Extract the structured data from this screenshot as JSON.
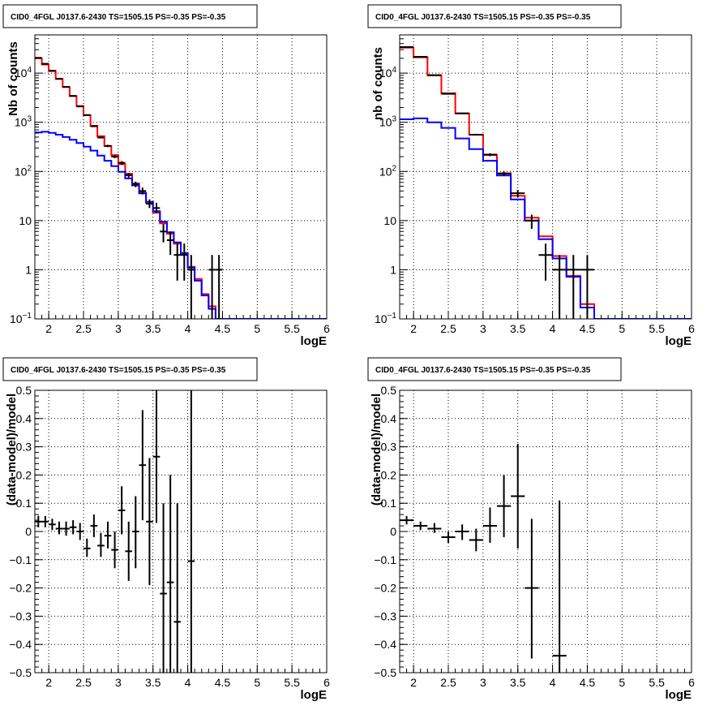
{
  "chart_data": [
    {
      "type": "step",
      "panel": "top-left",
      "title": "CID0_4FGL J0137.6-2430 TS=1505.15 PS=-0.35 PS=-0.35",
      "xlabel": "logE",
      "ylabel": "Nb of counts",
      "xlim": [
        1.8,
        6.0
      ],
      "ylim": [
        0.1,
        60000
      ],
      "yscale": "log",
      "grid": true,
      "x_ticks": [
        "2",
        "2.5",
        "3",
        "3.5",
        "4",
        "4.5",
        "5",
        "5.5",
        "6"
      ],
      "y_ticks": [
        {
          "v": 0.1,
          "base": "10",
          "exp": "−1"
        },
        {
          "v": 1,
          "text": "1"
        },
        {
          "v": 10,
          "text": "10"
        },
        {
          "v": 100,
          "base": "10",
          "exp": "2"
        },
        {
          "v": 1000,
          "base": "10",
          "exp": "3"
        },
        {
          "v": 10000,
          "base": "10",
          "exp": "4"
        }
      ],
      "bin_edges": [
        1.8,
        1.9,
        2.0,
        2.1,
        2.2,
        2.3,
        2.4,
        2.5,
        2.6,
        2.7,
        2.8,
        2.9,
        3.0,
        3.1,
        3.2,
        3.3,
        3.4,
        3.5,
        3.6,
        3.7,
        3.8,
        3.9,
        4.0,
        4.1,
        4.2,
        4.3,
        4.4,
        4.5,
        4.6,
        4.7,
        4.8,
        4.9,
        5.0,
        5.1,
        5.2,
        5.3,
        5.4,
        5.5,
        5.6,
        5.7,
        5.8,
        5.9,
        6.0
      ],
      "series": [
        {
          "name": "",
          "color": "#ff0000",
          "kind": "step",
          "values": [
            20000,
            15000,
            11000,
            7600,
            5200,
            3400,
            2150,
            1400,
            850,
            520,
            330,
            215,
            140,
            90,
            57,
            37,
            23,
            14.5,
            8.8,
            5.4,
            3.4,
            2.1,
            1.15,
            0.65,
            0.32,
            0.18,
            0.1,
            0.1,
            0.1,
            0.1,
            0.1,
            0.1,
            0.1,
            0.1,
            0.1,
            0.1,
            0.1,
            0.1,
            0.1,
            0.1,
            0.1,
            0.1
          ]
        },
        {
          "name": "",
          "color": "#0000ff",
          "kind": "step",
          "values": [
            620,
            640,
            610,
            560,
            500,
            440,
            380,
            320,
            265,
            210,
            165,
            128,
            98,
            72,
            52,
            36,
            24,
            15.5,
            9.5,
            5.8,
            3.6,
            2.2,
            1.1,
            0.6,
            0.3,
            0.16,
            0.1,
            0.1,
            0.1,
            0.1,
            0.1,
            0.1,
            0.1,
            0.1,
            0.1,
            0.1,
            0.1,
            0.1,
            0.1,
            0.1,
            0.1,
            0.1
          ]
        },
        {
          "name": "",
          "color": "#000000",
          "kind": "errorbars",
          "points": [
            {
              "x": 1.85,
              "y": 20500,
              "lo": 20370,
              "hi": 20630
            },
            {
              "x": 1.95,
              "y": 15500,
              "lo": 15380,
              "hi": 15620
            },
            {
              "x": 2.05,
              "y": 11200,
              "lo": 11100,
              "hi": 11300
            },
            {
              "x": 2.15,
              "y": 7700,
              "lo": 7610,
              "hi": 7790
            },
            {
              "x": 2.25,
              "y": 5250,
              "lo": 5180,
              "hi": 5320
            },
            {
              "x": 2.35,
              "y": 3450,
              "lo": 3390,
              "hi": 3510
            },
            {
              "x": 2.45,
              "y": 2100,
              "lo": 2050,
              "hi": 2150
            },
            {
              "x": 2.55,
              "y": 1400,
              "lo": 1360,
              "hi": 1440
            },
            {
              "x": 2.65,
              "y": 830,
              "lo": 800,
              "hi": 860
            },
            {
              "x": 2.75,
              "y": 490,
              "lo": 468,
              "hi": 512
            },
            {
              "x": 2.85,
              "y": 330,
              "lo": 312,
              "hi": 348
            },
            {
              "x": 2.95,
              "y": 200,
              "lo": 186,
              "hi": 214
            },
            {
              "x": 3.05,
              "y": 150,
              "lo": 138,
              "hi": 162
            },
            {
              "x": 3.15,
              "y": 84,
              "lo": 75,
              "hi": 93
            },
            {
              "x": 3.25,
              "y": 55,
              "lo": 48,
              "hi": 62
            },
            {
              "x": 3.35,
              "y": 40,
              "lo": 34,
              "hi": 47
            },
            {
              "x": 3.45,
              "y": 22,
              "lo": 18,
              "hi": 27
            },
            {
              "x": 3.55,
              "y": 18,
              "lo": 14,
              "hi": 23
            },
            {
              "x": 3.65,
              "y": 6,
              "lo": 3.6,
              "hi": 8.5
            },
            {
              "x": 3.75,
              "y": 4,
              "lo": 2.0,
              "hi": 6.0
            },
            {
              "x": 3.85,
              "y": 2,
              "lo": 0.6,
              "hi": 3.4
            },
            {
              "x": 3.95,
              "y": 2,
              "lo": 0.6,
              "hi": 3.4
            },
            {
              "x": 4.05,
              "y": 1,
              "lo": 0.1,
              "hi": 2.0
            },
            {
              "x": 4.35,
              "y": 1,
              "lo": 0.1,
              "hi": 2.0
            },
            {
              "x": 4.45,
              "y": 1,
              "lo": 0.1,
              "hi": 2.0
            }
          ]
        }
      ]
    },
    {
      "type": "step",
      "panel": "top-right",
      "title": "CID0_4FGL J0137.6-2430 TS=1505.15 PS=-0.35 PS=-0.35",
      "xlabel": "logE",
      "ylabel": "nb of counts",
      "xlim": [
        1.8,
        6.0
      ],
      "ylim": [
        0.1,
        60000
      ],
      "yscale": "log",
      "grid": true,
      "x_ticks": [
        "2",
        "2.5",
        "3",
        "3.5",
        "4",
        "4.5",
        "5",
        "5.5",
        "6"
      ],
      "y_ticks": [
        {
          "v": 0.1,
          "base": "10",
          "exp": "−1"
        },
        {
          "v": 1,
          "text": "1"
        },
        {
          "v": 10,
          "text": "10"
        },
        {
          "v": 100,
          "base": "10",
          "exp": "2"
        },
        {
          "v": 1000,
          "base": "10",
          "exp": "3"
        },
        {
          "v": 10000,
          "base": "10",
          "exp": "4"
        }
      ],
      "bin_edges": [
        1.8,
        2.0,
        2.2,
        2.4,
        2.6,
        2.8,
        3.0,
        3.2,
        3.4,
        3.6,
        3.8,
        4.0,
        4.2,
        4.4,
        4.6,
        4.8,
        5.0,
        5.2,
        5.4,
        5.6,
        5.8,
        6.0
      ],
      "series": [
        {
          "name": "",
          "color": "#ff0000",
          "kind": "step",
          "values": [
            33000,
            21000,
            9000,
            3900,
            1520,
            560,
            215,
            92,
            32,
            11.5,
            4.8,
            1.9,
            0.75,
            0.2,
            0.1,
            0.1,
            0.1,
            0.1,
            0.1,
            0.1,
            0.1
          ]
        },
        {
          "name": "",
          "color": "#0000ff",
          "kind": "step",
          "values": [
            1150,
            1200,
            1000,
            770,
            470,
            285,
            165,
            83,
            27,
            10,
            4.2,
            1.7,
            0.72,
            0.17,
            0.1,
            0.1,
            0.1,
            0.1,
            0.1,
            0.1,
            0.1
          ]
        },
        {
          "name": "",
          "color": "#000000",
          "kind": "errorbars",
          "points": [
            {
              "x": 1.9,
              "y": 34000,
              "lo": 33800,
              "hi": 34200
            },
            {
              "x": 2.1,
              "y": 21500,
              "lo": 21350,
              "hi": 21650
            },
            {
              "x": 2.3,
              "y": 9100,
              "lo": 9000,
              "hi": 9200
            },
            {
              "x": 2.5,
              "y": 3800,
              "lo": 3740,
              "hi": 3860
            },
            {
              "x": 2.7,
              "y": 1520,
              "lo": 1480,
              "hi": 1560
            },
            {
              "x": 2.9,
              "y": 560,
              "lo": 536,
              "hi": 584
            },
            {
              "x": 3.1,
              "y": 220,
              "lo": 205,
              "hi": 235
            },
            {
              "x": 3.3,
              "y": 90,
              "lo": 81,
              "hi": 99
            },
            {
              "x": 3.5,
              "y": 36,
              "lo": 30,
              "hi": 42
            },
            {
              "x": 3.7,
              "y": 10,
              "lo": 6.8,
              "hi": 13.2
            },
            {
              "x": 3.9,
              "y": 2,
              "lo": 0.6,
              "hi": 3.4
            },
            {
              "x": 4.1,
              "y": 1,
              "lo": 0.1,
              "hi": 2.0
            },
            {
              "x": 4.3,
              "y": 1,
              "lo": 0.1,
              "hi": 2.0
            },
            {
              "x": 4.5,
              "y": 1,
              "lo": 0.1,
              "hi": 2.0
            }
          ]
        }
      ]
    },
    {
      "type": "scatter",
      "panel": "bottom-left",
      "title": "CID0_4FGL J0137.6-2430 TS=1505.15 PS=-0.35 PS=-0.35",
      "xlabel": "logE",
      "ylabel": "(data-model)/model",
      "xlim": [
        1.8,
        6.0
      ],
      "ylim": [
        -0.5,
        0.5
      ],
      "yscale": "linear",
      "grid": true,
      "x_ticks": [
        "2",
        "2.5",
        "3",
        "3.5",
        "4",
        "4.5",
        "5",
        "5.5",
        "6"
      ],
      "y_ticks": [
        "−0.5",
        "−0.4",
        "−0.3",
        "−0.2",
        "−0.1",
        "0",
        "0.1",
        "0.2",
        "0.3",
        "0.4",
        "0.5"
      ],
      "bin_half_width": 0.05,
      "series": [
        {
          "name": "",
          "color": "#000000",
          "kind": "errorbars",
          "points": [
            {
              "x": 1.85,
              "y": 0.035,
              "lo": 0.015,
              "hi": 0.055
            },
            {
              "x": 1.95,
              "y": 0.035,
              "lo": 0.015,
              "hi": 0.055
            },
            {
              "x": 2.05,
              "y": 0.025,
              "lo": 0.005,
              "hi": 0.045
            },
            {
              "x": 2.15,
              "y": 0.01,
              "lo": -0.01,
              "hi": 0.035
            },
            {
              "x": 2.25,
              "y": 0.01,
              "lo": -0.015,
              "hi": 0.035
            },
            {
              "x": 2.35,
              "y": 0.015,
              "lo": -0.01,
              "hi": 0.04
            },
            {
              "x": 2.45,
              "y": 0.0,
              "lo": -0.03,
              "hi": 0.03
            },
            {
              "x": 2.55,
              "y": -0.06,
              "lo": -0.09,
              "hi": -0.025
            },
            {
              "x": 2.65,
              "y": 0.02,
              "lo": -0.02,
              "hi": 0.06
            },
            {
              "x": 2.75,
              "y": -0.05,
              "lo": -0.09,
              "hi": -0.005
            },
            {
              "x": 2.85,
              "y": -0.015,
              "lo": -0.06,
              "hi": 0.035
            },
            {
              "x": 2.95,
              "y": -0.065,
              "lo": -0.13,
              "hi": 0.0
            },
            {
              "x": 3.05,
              "y": 0.075,
              "lo": -0.01,
              "hi": 0.16
            },
            {
              "x": 3.15,
              "y": -0.07,
              "lo": -0.175,
              "hi": 0.035
            },
            {
              "x": 3.25,
              "y": 0.0,
              "lo": -0.13,
              "hi": 0.125
            },
            {
              "x": 3.35,
              "y": 0.235,
              "lo": 0.04,
              "hi": 0.43
            },
            {
              "x": 3.45,
              "y": 0.035,
              "lo": -0.19,
              "hi": 0.26
            },
            {
              "x": 3.55,
              "y": 0.265,
              "lo": 0.03,
              "hi": 0.5
            },
            {
              "x": 3.65,
              "y": -0.22,
              "lo": -0.5,
              "hi": 0.1
            },
            {
              "x": 3.75,
              "y": -0.18,
              "lo": -0.5,
              "hi": 0.2
            },
            {
              "x": 3.85,
              "y": -0.32,
              "lo": -0.5,
              "hi": 0.1
            },
            {
              "x": 4.05,
              "y": -0.105,
              "lo": -0.5,
              "hi": 0.5
            }
          ]
        }
      ]
    },
    {
      "type": "scatter",
      "panel": "bottom-right",
      "title": "CID0_4FGL J0137.6-2430 TS=1505.15 PS=-0.35 PS=-0.35",
      "xlabel": "logE",
      "ylabel": "(data-model)/model",
      "xlim": [
        1.8,
        6.0
      ],
      "ylim": [
        -0.5,
        0.5
      ],
      "yscale": "linear",
      "grid": true,
      "x_ticks": [
        "2",
        "2.5",
        "3",
        "3.5",
        "4",
        "4.5",
        "5",
        "5.5",
        "6"
      ],
      "y_ticks": [
        "−0.5",
        "−0.4",
        "−0.3",
        "−0.2",
        "−0.1",
        "0",
        "0.1",
        "0.2",
        "0.3",
        "0.4",
        "0.5"
      ],
      "bin_half_width": 0.1,
      "series": [
        {
          "name": "",
          "color": "#000000",
          "kind": "errorbars",
          "points": [
            {
              "x": 1.9,
              "y": 0.04,
              "lo": 0.025,
              "hi": 0.055
            },
            {
              "x": 2.1,
              "y": 0.02,
              "lo": 0.005,
              "hi": 0.035
            },
            {
              "x": 2.3,
              "y": 0.01,
              "lo": -0.005,
              "hi": 0.03
            },
            {
              "x": 2.5,
              "y": -0.02,
              "lo": -0.04,
              "hi": 0.0
            },
            {
              "x": 2.7,
              "y": 0.0,
              "lo": -0.03,
              "hi": 0.025
            },
            {
              "x": 2.9,
              "y": -0.03,
              "lo": -0.07,
              "hi": 0.01
            },
            {
              "x": 3.1,
              "y": 0.02,
              "lo": -0.04,
              "hi": 0.085
            },
            {
              "x": 3.3,
              "y": 0.09,
              "lo": -0.02,
              "hi": 0.2
            },
            {
              "x": 3.5,
              "y": 0.125,
              "lo": -0.06,
              "hi": 0.31
            },
            {
              "x": 3.7,
              "y": -0.2,
              "lo": -0.45,
              "hi": 0.045
            },
            {
              "x": 4.1,
              "y": -0.44,
              "lo": -0.5,
              "hi": 0.11
            }
          ]
        }
      ]
    }
  ]
}
